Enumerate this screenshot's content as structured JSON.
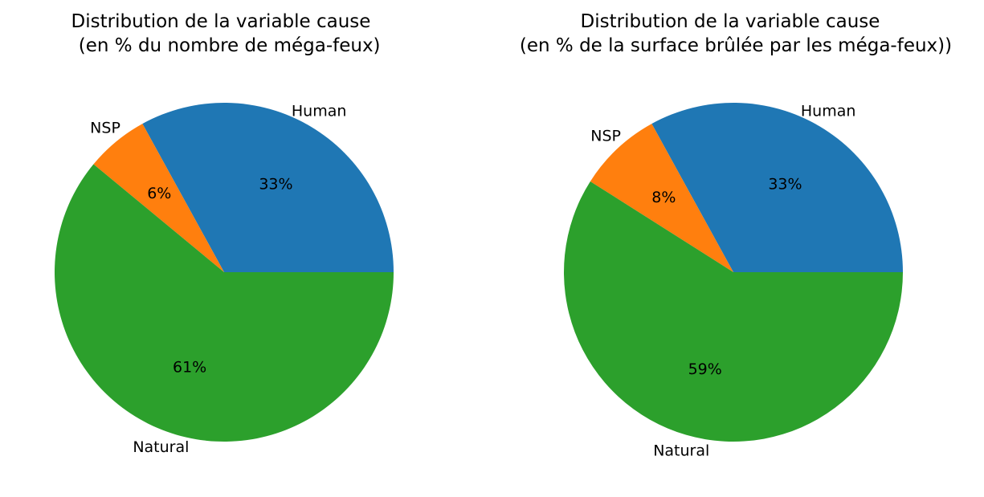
{
  "chart_data": [
    {
      "type": "pie",
      "title_line1": "Distribution de la variable cause",
      "title_line2": " (en % du nombre de méga-feux)",
      "categories": [
        "Human",
        "NSP",
        "Natural"
      ],
      "values": [
        33,
        6,
        61
      ],
      "value_labels": [
        "33%",
        "6%",
        "61%"
      ],
      "colors": [
        "#1f77b4",
        "#ff7f0e",
        "#2ca02c"
      ]
    },
    {
      "type": "pie",
      "title_line1": "Distribution de la variable cause",
      "title_line2": "(en % de la surface brûlée par les méga-feux))",
      "categories": [
        "Human",
        "NSP",
        "Natural"
      ],
      "values": [
        33,
        8,
        59
      ],
      "value_labels": [
        "33%",
        "8%",
        "59%"
      ],
      "colors": [
        "#1f77b4",
        "#ff7f0e",
        "#2ca02c"
      ]
    }
  ]
}
